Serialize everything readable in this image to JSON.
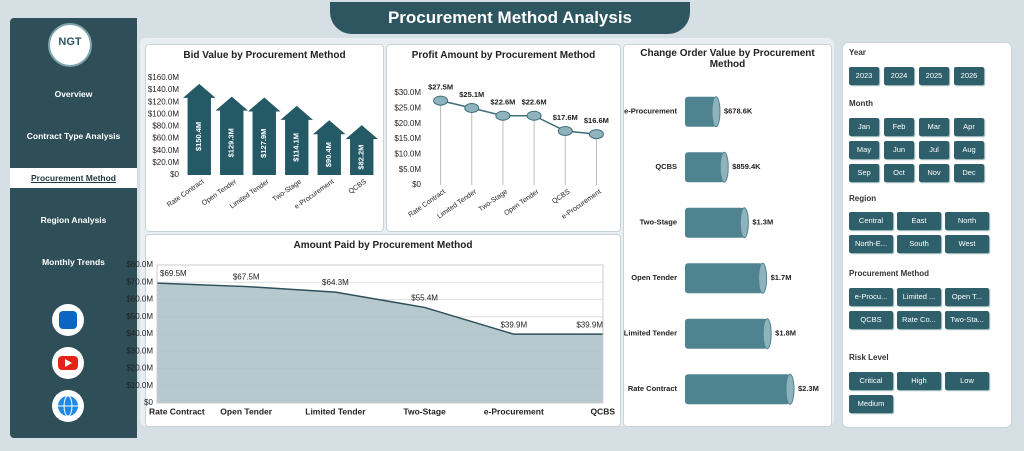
{
  "title": "Procurement Method Analysis",
  "logo": "NGT",
  "nav": [
    "Overview",
    "Contract Type Analysis",
    "Procurement Method",
    "Region Analysis",
    "Monthly Trends"
  ],
  "active_nav": "Procurement Method",
  "slicers": [
    {
      "title": "Year",
      "items": [
        "2023",
        "2024",
        "2025",
        "2026"
      ]
    },
    {
      "title": "Month",
      "items": [
        "Jan",
        "Feb",
        "Mar",
        "Apr",
        "May",
        "Jun",
        "Jul",
        "Aug",
        "Sep",
        "Oct",
        "Nov",
        "Dec"
      ]
    },
    {
      "title": "Region",
      "items": [
        "Central",
        "East",
        "North",
        "North-E...",
        "South",
        "West"
      ]
    },
    {
      "title": "Procurement Method",
      "items": [
        "e-Procu...",
        "Limited ...",
        "Open T...",
        "QCBS",
        "Rate Co...",
        "Two-Sta..."
      ]
    },
    {
      "title": "Risk Level",
      "items": [
        "Critical",
        "High",
        "Low",
        "Medium"
      ]
    }
  ],
  "chart_data": [
    {
      "type": "bar",
      "title": "Bid Value by Procurement Method",
      "color": "#245a66",
      "categories": [
        "Rate Contract",
        "Open Tender",
        "Limited Tender",
        "Two-Stage",
        "e-Procurement",
        "QCBS"
      ],
      "values": [
        150.4,
        129.3,
        127.9,
        114.1,
        90.4,
        82.2
      ],
      "value_labels": [
        "$150.4M",
        "$129.3M",
        "$127.9M",
        "$114.1M",
        "$90.4M",
        "$82.2M"
      ],
      "ylim": [
        0,
        160
      ],
      "yticks": [
        {
          "value": 0,
          "label": "$0"
        },
        {
          "value": 20,
          "label": "$20.0M"
        },
        {
          "value": 40,
          "label": "$40.0M"
        },
        {
          "value": 60,
          "label": "$60.0M"
        },
        {
          "value": 80,
          "label": "$80.0M"
        },
        {
          "value": 100,
          "label": "$100.0M"
        },
        {
          "value": 120,
          "label": "$120.0M"
        },
        {
          "value": 140,
          "label": "$140.0M"
        },
        {
          "value": 160,
          "label": "$160.0M"
        }
      ],
      "grid": false
    },
    {
      "type": "line",
      "title": "Profit Amount by Procurement Method",
      "color": "#3d6d78",
      "categories": [
        "Rate Contract",
        "Limited Tender",
        "Two-Stage",
        "Open Tender",
        "QCBS",
        "e-Procurement"
      ],
      "values": [
        27.5,
        25.1,
        22.6,
        22.6,
        17.6,
        16.6
      ],
      "value_labels": [
        "$27.5M",
        "$25.1M",
        "$22.6M",
        "$22.6M",
        "$17.6M",
        "$16.6M"
      ],
      "ylim": [
        0,
        30
      ],
      "yticks": [
        {
          "value": 0,
          "label": "$0"
        },
        {
          "value": 5,
          "label": "$5.0M"
        },
        {
          "value": 10,
          "label": "$10.0M"
        },
        {
          "value": 15,
          "label": "$15.0M"
        },
        {
          "value": 20,
          "label": "$20.0M"
        },
        {
          "value": 25,
          "label": "$25.0M"
        },
        {
          "value": 30,
          "label": "$30.0M"
        }
      ],
      "grid": false
    },
    {
      "type": "bar",
      "horizontal": true,
      "title": "Change Order Value by Procurement Method",
      "color": "#4f8390",
      "categories": [
        "e-Procurement",
        "QCBS",
        "Two-Stage",
        "Open Tender",
        "Limited Tender",
        "Rate Contract"
      ],
      "values": [
        678600,
        859400,
        1300000,
        1700000,
        1800000,
        2300000
      ],
      "value_labels": [
        "$678.6K",
        "$859.4K",
        "$1.3M",
        "$1.7M",
        "$1.8M",
        "$2.3M"
      ]
    },
    {
      "type": "area",
      "title": "Amount Paid by Procurement Method",
      "color": "#2f4f5a",
      "fill": "#a9c0c6",
      "categories": [
        "Rate Contract",
        "Open Tender",
        "Limited Tender",
        "Two-Stage",
        "e-Procurement",
        "QCBS"
      ],
      "values": [
        69.5,
        67.5,
        64.3,
        55.4,
        39.9,
        39.9
      ],
      "value_labels": [
        "$69.5M",
        "$67.5M",
        "$64.3M",
        "$55.4M",
        "$39.9M",
        "$39.9M"
      ],
      "ylim": [
        0,
        80
      ],
      "yticks": [
        {
          "value": 0,
          "label": "$0"
        },
        {
          "value": 10,
          "label": "$10.0M"
        },
        {
          "value": 20,
          "label": "$20.0M"
        },
        {
          "value": 30,
          "label": "$30.0M"
        },
        {
          "value": 40,
          "label": "$40.0M"
        },
        {
          "value": 50,
          "label": "$50.0M"
        },
        {
          "value": 60,
          "label": "$60.0M"
        },
        {
          "value": 70,
          "label": "$70.0M"
        },
        {
          "value": 80,
          "label": "$80.0M"
        }
      ],
      "grid": true
    }
  ]
}
